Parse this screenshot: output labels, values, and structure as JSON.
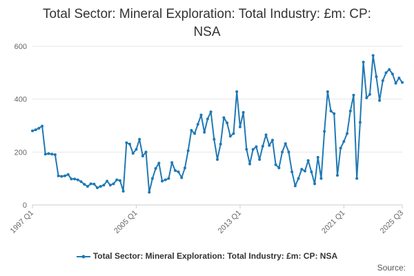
{
  "chart_data": {
    "type": "line",
    "title_line1": "Total Sector: Mineral Exploration: Total Industry: £m: CP:",
    "title_line2": "NSA",
    "ylim": [
      0,
      600
    ],
    "yticks": [
      0,
      200,
      400,
      600
    ],
    "ytick_labels": [
      "0",
      "200",
      "400",
      "600"
    ],
    "start_quarter": "1997 Q1",
    "xtick_labels": [
      "1997 Q1",
      "2005 Q1",
      "2013 Q1",
      "2021 Q1",
      "2025 Q3"
    ],
    "xtick_indices": [
      0,
      32,
      64,
      96,
      114
    ],
    "grid": true,
    "legend_position": "bottom",
    "series": [
      {
        "name": "Total Sector: Mineral Exploration: Total Industry: £m: CP: NSA",
        "color": "#1f78b4",
        "values": [
          280,
          284,
          290,
          298,
          192,
          194,
          192,
          190,
          110,
          108,
          110,
          115,
          98,
          98,
          95,
          88,
          78,
          70,
          80,
          79,
          65,
          70,
          75,
          90,
          75,
          80,
          95,
          92,
          52,
          235,
          230,
          195,
          210,
          248,
          185,
          200,
          48,
          100,
          138,
          158,
          90,
          95,
          100,
          160,
          130,
          125,
          103,
          140,
          205,
          282,
          270,
          305,
          340,
          275,
          325,
          352,
          248,
          172,
          230,
          330,
          310,
          260,
          270,
          428,
          295,
          350,
          210,
          155,
          210,
          220,
          172,
          222,
          265,
          225,
          245,
          152,
          140,
          200,
          232,
          200,
          125,
          72,
          100,
          135,
          128,
          168,
          125,
          80,
          180,
          100,
          278,
          428,
          355,
          345,
          112,
          215,
          240,
          270,
          355,
          415,
          100,
          312,
          540,
          405,
          418,
          565,
          485,
          395,
          470,
          500,
          512,
          495,
          460,
          480,
          463
        ]
      }
    ]
  },
  "source_label": "Source:"
}
